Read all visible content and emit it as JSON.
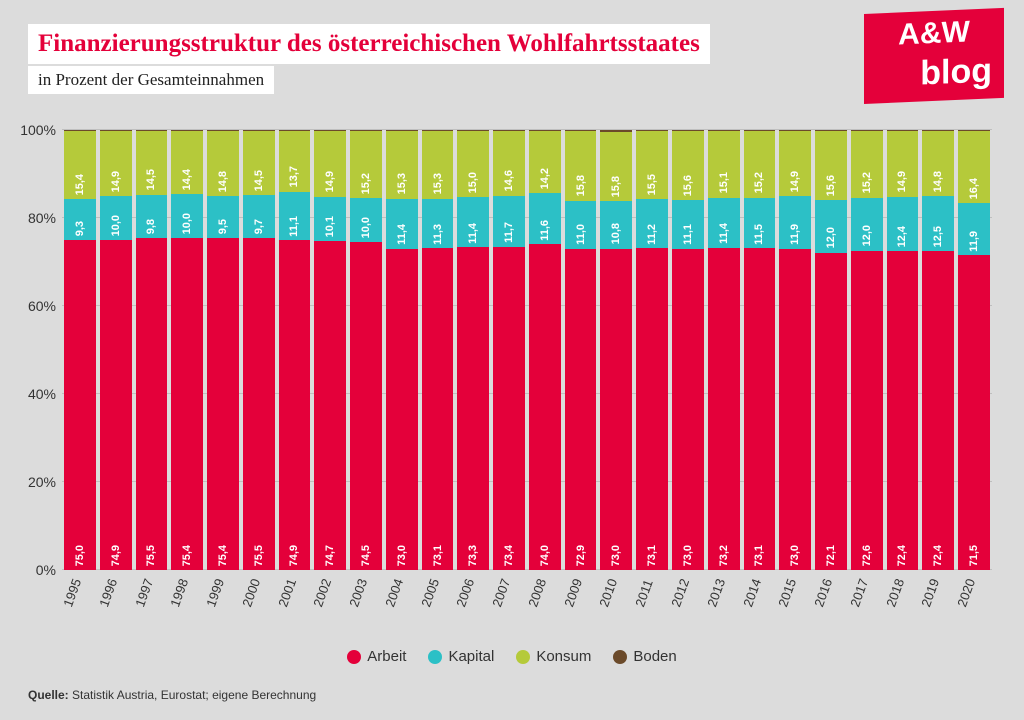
{
  "title": "Finanzierungsstruktur des österreichischen Wohlfahrtsstaates",
  "title_color": "#e4003a",
  "subtitle": "in Prozent der Gesamteinnahmen",
  "logo": {
    "top": "A&W",
    "bottom": "blog"
  },
  "chart": {
    "type": "stacked_bar",
    "background_color": "#dcdcdc",
    "grid_color": "#bfbfbf",
    "ylim": [
      0,
      100
    ],
    "ytick_step": 20,
    "yticks": [
      "0%",
      "20%",
      "40%",
      "60%",
      "80%",
      "100%"
    ],
    "label_fontsize": 11,
    "axis_fontsize": 14,
    "categories": [
      "1995",
      "1996",
      "1997",
      "1998",
      "1999",
      "2000",
      "2001",
      "2002",
      "2003",
      "2004",
      "2005",
      "2006",
      "2007",
      "2008",
      "2009",
      "2010",
      "2011",
      "2012",
      "2013",
      "2014",
      "2015",
      "2016",
      "2017",
      "2018",
      "2019",
      "2020"
    ],
    "series": [
      {
        "name": "Arbeit",
        "color": "#e4003a",
        "values": [
          75.0,
          74.9,
          75.5,
          75.4,
          75.4,
          75.5,
          74.9,
          74.7,
          74.5,
          73.0,
          73.1,
          73.3,
          73.4,
          74.0,
          72.9,
          73.0,
          73.1,
          73.0,
          73.2,
          73.1,
          73.0,
          72.1,
          72.6,
          72.4,
          72.4,
          71.5
        ]
      },
      {
        "name": "Kapital",
        "color": "#2cc0c6",
        "values": [
          9.3,
          10.0,
          9.8,
          10.0,
          9.5,
          9.7,
          11.1,
          10.1,
          10.0,
          11.4,
          11.3,
          11.4,
          11.7,
          11.6,
          11.0,
          10.8,
          11.2,
          11.1,
          11.4,
          11.5,
          11.9,
          12.0,
          12.0,
          12.4,
          12.5,
          11.9
        ]
      },
      {
        "name": "Konsum",
        "color": "#b5ca3a",
        "values": [
          15.4,
          14.9,
          14.5,
          14.4,
          14.8,
          14.5,
          13.7,
          14.9,
          15.2,
          15.3,
          15.3,
          15.0,
          14.6,
          14.2,
          15.8,
          15.8,
          15.5,
          15.6,
          15.1,
          15.2,
          14.9,
          15.6,
          15.2,
          14.9,
          14.8,
          16.4
        ]
      },
      {
        "name": "Boden",
        "color": "#6b4a2a",
        "values": [
          0.3,
          0.2,
          0.2,
          0.2,
          0.3,
          0.3,
          0.3,
          0.3,
          0.3,
          0.3,
          0.3,
          0.3,
          0.3,
          0.2,
          0.3,
          0.4,
          0.2,
          0.3,
          0.3,
          0.2,
          0.2,
          0.3,
          0.2,
          0.3,
          0.3,
          0.2
        ]
      }
    ]
  },
  "legend": [
    {
      "label": "Arbeit",
      "color": "#e4003a"
    },
    {
      "label": "Kapital",
      "color": "#2cc0c6"
    },
    {
      "label": "Konsum",
      "color": "#b5ca3a"
    },
    {
      "label": "Boden",
      "color": "#6b4a2a"
    }
  ],
  "source_label": "Quelle:",
  "source_text": " Statistik Austria, Eurostat; eigene Berechnung"
}
